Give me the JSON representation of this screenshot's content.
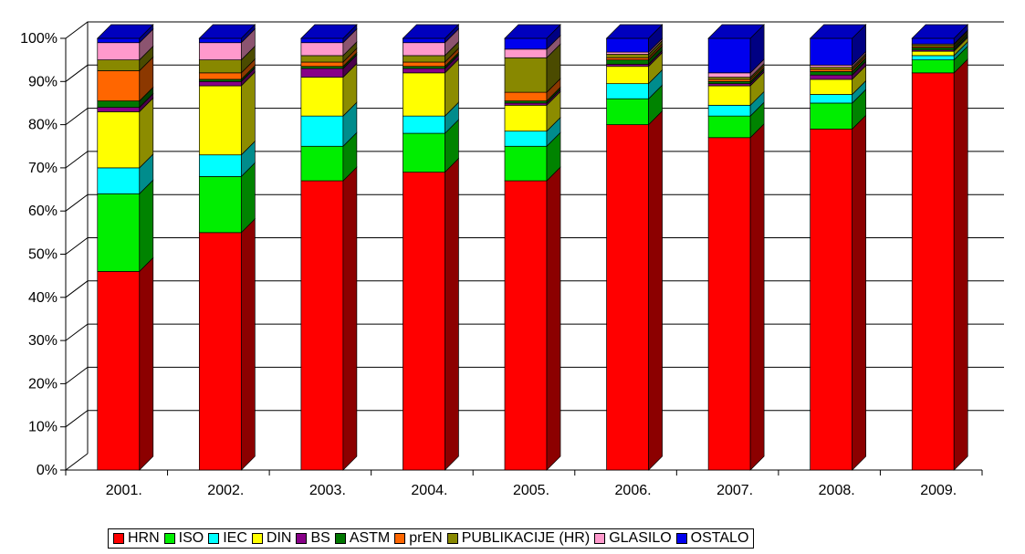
{
  "chart_data": {
    "type": "bar",
    "stacked": true,
    "three_d": true,
    "percent": true,
    "title": "",
    "xlabel": "",
    "ylabel": "",
    "ylim": [
      0,
      100
    ],
    "y_ticks": [
      "0%",
      "10%",
      "20%",
      "30%",
      "40%",
      "50%",
      "60%",
      "70%",
      "80%",
      "90%",
      "100%"
    ],
    "grid": "horizontal",
    "legend_position": "bottom",
    "categories": [
      "2001.",
      "2002.",
      "2003.",
      "2004.",
      "2005.",
      "2006.",
      "2007.",
      "2008.",
      "2009."
    ],
    "series": [
      {
        "name": "HRN",
        "color": "#ff0000",
        "values": [
          46,
          55,
          67,
          69,
          67,
          80,
          77,
          79,
          92
        ]
      },
      {
        "name": "ISO",
        "color": "#00ee00",
        "values": [
          18,
          13,
          8,
          9,
          8,
          6,
          5,
          6,
          3
        ]
      },
      {
        "name": "IEC",
        "color": "#00ffff",
        "values": [
          6,
          5,
          7,
          4,
          3.5,
          3.5,
          2.5,
          2,
          1
        ]
      },
      {
        "name": "DIN",
        "color": "#ffff00",
        "values": [
          13,
          16,
          9,
          10,
          6,
          4,
          4.5,
          3.5,
          1
        ]
      },
      {
        "name": "BS",
        "color": "#880088",
        "values": [
          1,
          1,
          2,
          1,
          0.5,
          0.5,
          0.5,
          1,
          0.3
        ]
      },
      {
        "name": "ASTM",
        "color": "#007700",
        "values": [
          1.5,
          0.5,
          0.5,
          0.5,
          0.5,
          1,
          0.5,
          0.8,
          0.5
        ]
      },
      {
        "name": "prEN",
        "color": "#ff6600",
        "values": [
          7,
          1.5,
          1,
          1,
          2,
          0.5,
          0.5,
          0.5,
          0.3
        ]
      },
      {
        "name": "PUBLIKACIJE (HR)",
        "color": "#888800",
        "values": [
          2.5,
          3,
          1.5,
          1.5,
          8,
          0.8,
          0.5,
          0.5,
          0.4
        ]
      },
      {
        "name": "GLASILO",
        "color": "#ff99cc",
        "values": [
          4,
          4,
          3,
          3,
          2,
          0.5,
          1,
          0.5,
          0.2
        ]
      },
      {
        "name": "OSTALO",
        "color": "#0000ee",
        "values": [
          1,
          1,
          1,
          1,
          2.5,
          3.2,
          8,
          6.2,
          1.3
        ]
      }
    ]
  }
}
